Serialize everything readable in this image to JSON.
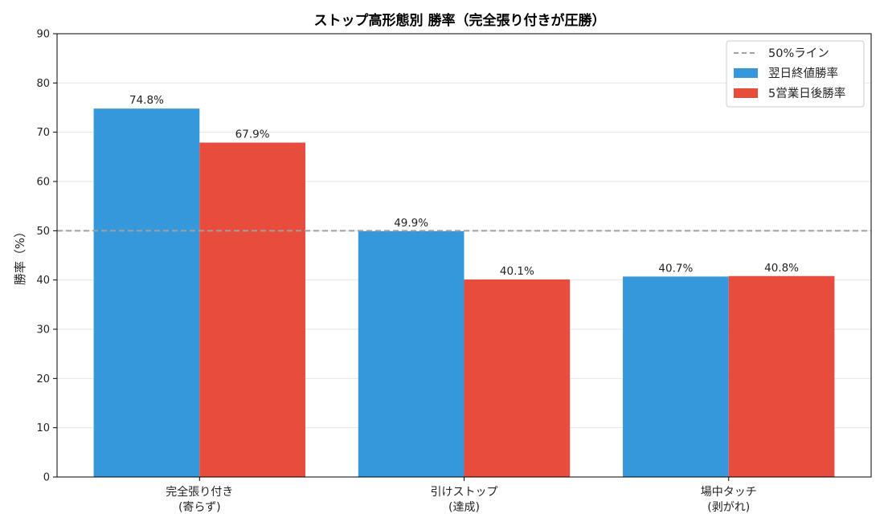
{
  "chart_data": {
    "type": "bar",
    "title": "ストップ高形態別 勝率（完全張り付きが圧勝）",
    "ylabel": "勝率（%）",
    "xlabel": "",
    "ylim": [
      0,
      90
    ],
    "yticks": [
      0,
      10,
      20,
      30,
      40,
      50,
      60,
      70,
      80,
      90
    ],
    "grid": "y",
    "legend_position": "top-right",
    "categories": [
      [
        "完全張り付き",
        "(寄らず)"
      ],
      [
        "引けストップ",
        "(達成)"
      ],
      [
        "場中タッチ",
        "(剥がれ)"
      ]
    ],
    "series": [
      {
        "name": "翌日終値勝率",
        "color": "#3598db",
        "values": [
          74.8,
          49.9,
          40.7
        ],
        "labels": [
          "74.8%",
          "49.9%",
          "40.7%"
        ]
      },
      {
        "name": "5営業日後勝率",
        "color": "#e74c3c",
        "values": [
          67.9,
          40.1,
          40.8
        ],
        "labels": [
          "67.9%",
          "40.1%",
          "40.8%"
        ]
      }
    ],
    "reference_line": {
      "name": "50%ライン",
      "value": 50,
      "color": "#a0a0a0",
      "style": "dashed"
    }
  }
}
